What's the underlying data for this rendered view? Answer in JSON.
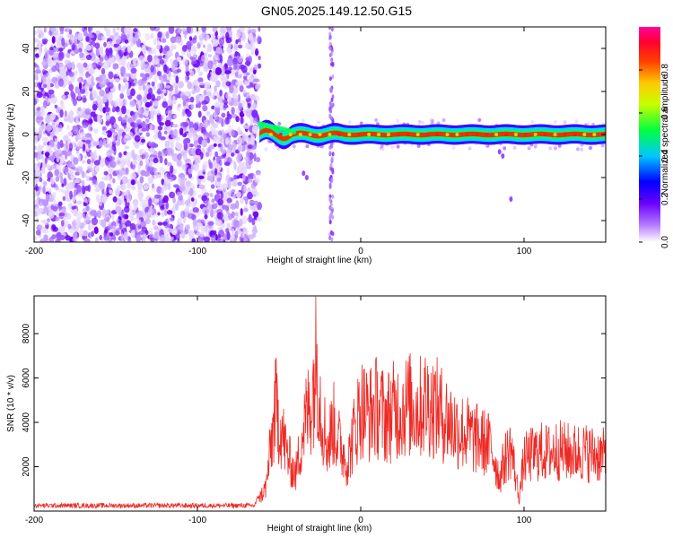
{
  "title": "GN05.2025.149.12.50.G15",
  "chart_data": [
    {
      "type": "heatmap",
      "xlabel": "Height of straight line (km)",
      "ylabel": "Frequency (Hz)",
      "xlim": [
        -200,
        150
      ],
      "ylim": [
        -50,
        50
      ],
      "x_ticks": [
        -200,
        -100,
        0,
        100
      ],
      "y_ticks": [
        -40,
        -20,
        0,
        20,
        40
      ],
      "colorbar": {
        "label": "Normalized spectral amplitude",
        "range": [
          0,
          1
        ],
        "ticks": [
          "0.0",
          "0.2",
          "0.4",
          "0.6",
          "0.8"
        ],
        "ticks_values": [
          0,
          0.2,
          0.4,
          0.6,
          0.8
        ],
        "colors": [
          "#ffffff",
          "#7a00ff",
          "#0000ff",
          "#00e0ff",
          "#00ff00",
          "#ffff00",
          "#ff8000",
          "#ff0000",
          "#ff00a0"
        ]
      },
      "regions": {
        "noise_x_range": [
          -200,
          -62
        ],
        "signal_x_range": [
          -62,
          150
        ],
        "signal_center_frequency": 0,
        "vertical_stripe_x": -18
      }
    },
    {
      "type": "line",
      "xlabel": "Height of straight line (km)",
      "ylabel": "SNR (10 * v/v)",
      "xlim": [
        -200,
        150
      ],
      "ylim": [
        0,
        9700
      ],
      "x_ticks": [
        -200,
        -100,
        0,
        100
      ],
      "y_ticks": [
        2000,
        4000,
        6000,
        8000
      ],
      "line_color": "#ee2a24",
      "envelope": [
        {
          "x": -200,
          "y": 250
        },
        {
          "x": -150,
          "y": 250
        },
        {
          "x": -100,
          "y": 250
        },
        {
          "x": -65,
          "y": 250
        },
        {
          "x": -58,
          "y": 1500
        },
        {
          "x": -52,
          "y": 6500
        },
        {
          "x": -45,
          "y": 3500
        },
        {
          "x": -40,
          "y": 2200
        },
        {
          "x": -35,
          "y": 5200
        },
        {
          "x": -30,
          "y": 7000
        },
        {
          "x": -27,
          "y": 9600
        },
        {
          "x": -24,
          "y": 6000
        },
        {
          "x": -20,
          "y": 4000
        },
        {
          "x": -17,
          "y": 5500
        },
        {
          "x": -13,
          "y": 4200
        },
        {
          "x": -8,
          "y": 3000
        },
        {
          "x": -5,
          "y": 4500
        },
        {
          "x": 0,
          "y": 6500
        },
        {
          "x": 5,
          "y": 6000
        },
        {
          "x": 10,
          "y": 6500
        },
        {
          "x": 15,
          "y": 5800
        },
        {
          "x": 20,
          "y": 6200
        },
        {
          "x": 25,
          "y": 6400
        },
        {
          "x": 30,
          "y": 6600
        },
        {
          "x": 35,
          "y": 6300
        },
        {
          "x": 40,
          "y": 6800
        },
        {
          "x": 45,
          "y": 6500
        },
        {
          "x": 50,
          "y": 6000
        },
        {
          "x": 55,
          "y": 5500
        },
        {
          "x": 60,
          "y": 5000
        },
        {
          "x": 65,
          "y": 4800
        },
        {
          "x": 70,
          "y": 4500
        },
        {
          "x": 75,
          "y": 4300
        },
        {
          "x": 80,
          "y": 4000
        },
        {
          "x": 85,
          "y": 2000
        },
        {
          "x": 88,
          "y": 3200
        },
        {
          "x": 92,
          "y": 4000
        },
        {
          "x": 97,
          "y": 800
        },
        {
          "x": 100,
          "y": 3200
        },
        {
          "x": 105,
          "y": 3500
        },
        {
          "x": 110,
          "y": 3700
        },
        {
          "x": 115,
          "y": 3600
        },
        {
          "x": 120,
          "y": 3800
        },
        {
          "x": 125,
          "y": 3700
        },
        {
          "x": 130,
          "y": 3600
        },
        {
          "x": 135,
          "y": 3700
        },
        {
          "x": 140,
          "y": 3600
        },
        {
          "x": 145,
          "y": 3500
        },
        {
          "x": 150,
          "y": 3400
        }
      ]
    }
  ]
}
